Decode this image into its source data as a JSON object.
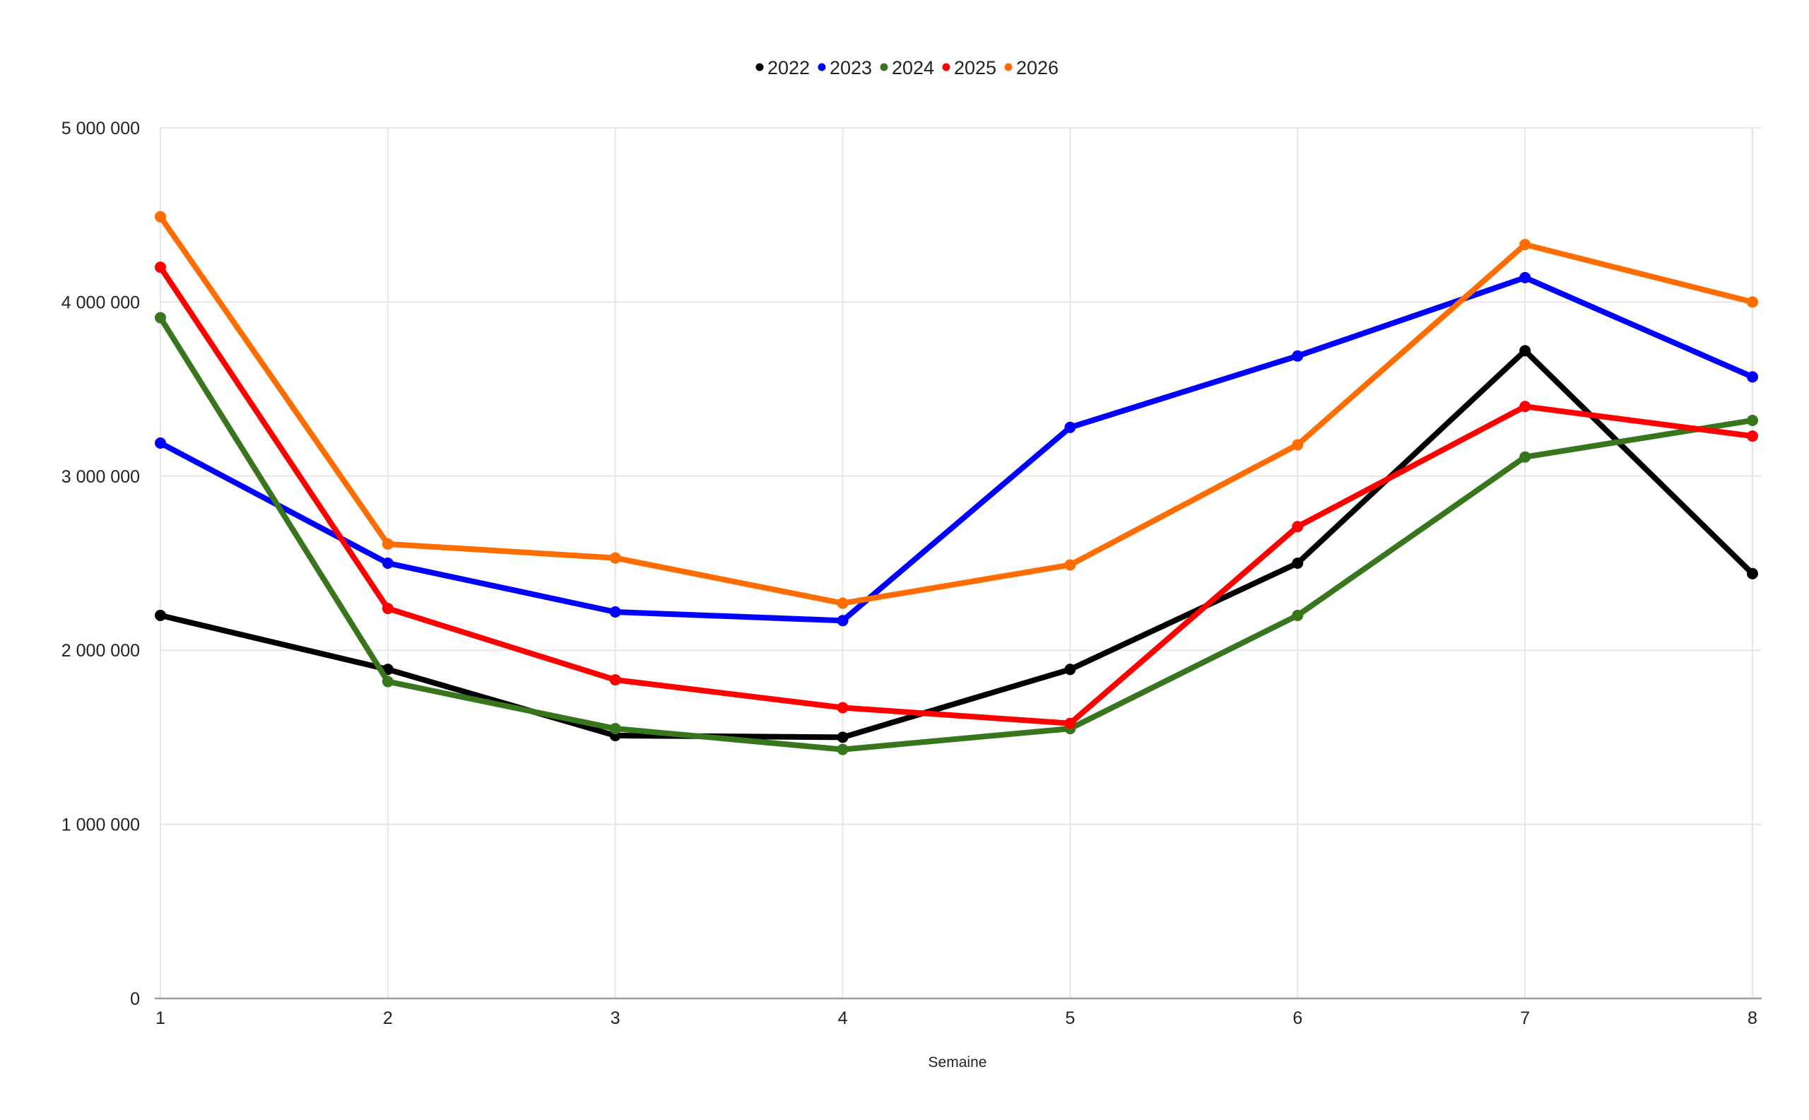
{
  "chart_data": {
    "type": "line",
    "title": "",
    "xlabel": "Semaine",
    "ylabel": "",
    "x": [
      1,
      2,
      3,
      4,
      5,
      6,
      7,
      8
    ],
    "x_tick_labels": [
      "1",
      "2",
      "3",
      "4",
      "5",
      "6",
      "7",
      "8"
    ],
    "ylim": [
      0,
      5000000
    ],
    "y_ticks": [
      0,
      1000000,
      2000000,
      3000000,
      4000000,
      5000000
    ],
    "y_tick_labels": [
      "0",
      "1 000 000",
      "2 000 000",
      "3 000 000",
      "4 000 000",
      "5 000 000"
    ],
    "grid": true,
    "legend_position": "top-center",
    "markers": true,
    "series": [
      {
        "name": "2022",
        "color": "#000000",
        "values": [
          2200000,
          1890000,
          1510000,
          1500000,
          1890000,
          2500000,
          3720000,
          2440000
        ]
      },
      {
        "name": "2023",
        "color": "#0000ff",
        "values": [
          3190000,
          2500000,
          2220000,
          2170000,
          3280000,
          3690000,
          4140000,
          3570000
        ]
      },
      {
        "name": "2024",
        "color": "#38761d",
        "values": [
          3910000,
          1820000,
          1550000,
          1430000,
          1550000,
          2200000,
          3110000,
          3320000
        ]
      },
      {
        "name": "2025",
        "color": "#ff0000",
        "values": [
          4200000,
          2240000,
          1830000,
          1670000,
          1580000,
          2710000,
          3400000,
          3230000
        ]
      },
      {
        "name": "2026",
        "color": "#ff6d01",
        "values": [
          4490000,
          2610000,
          2530000,
          2270000,
          2490000,
          3180000,
          4330000,
          4000000
        ]
      }
    ]
  }
}
